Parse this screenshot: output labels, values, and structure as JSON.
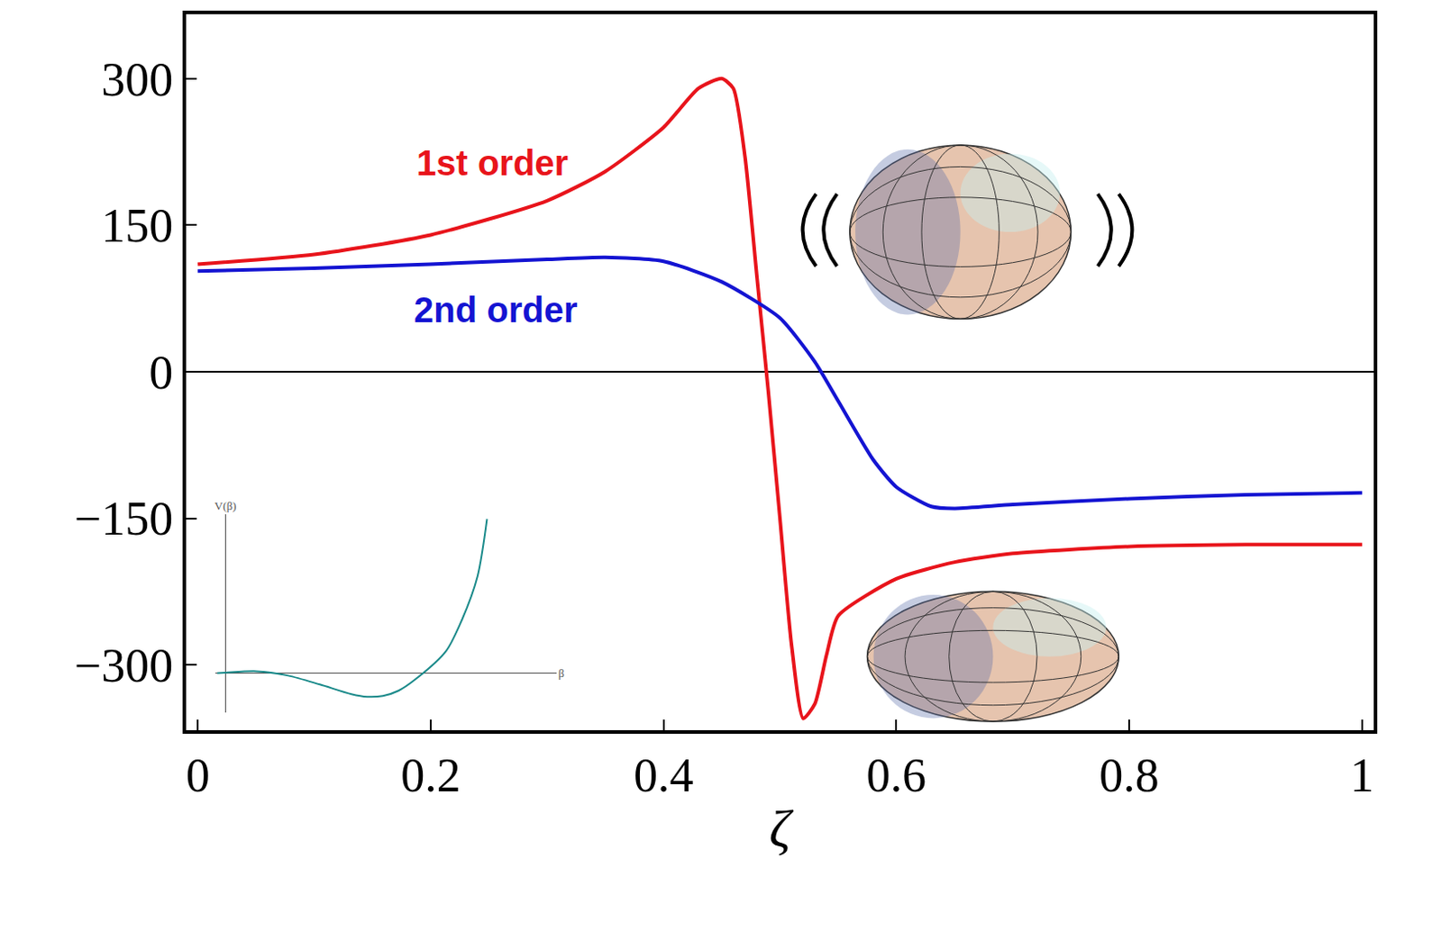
{
  "chart_data": [
    {
      "type": "line",
      "x_label": "ζ",
      "xlim": [
        -0.01,
        1.01
      ],
      "xticks": [
        0,
        0.2,
        0.4,
        0.6,
        0.8,
        1
      ],
      "ylim": [
        -367,
        366
      ],
      "yticks": [
        {
          "value": -300,
          "label": "−300"
        },
        {
          "value": -150,
          "label": "−150"
        },
        0,
        150,
        300
      ],
      "grid": false,
      "series": [
        {
          "name": "1st order",
          "color": "#e8141b",
          "x": [
            0,
            0.1,
            0.2,
            0.3,
            0.35,
            0.4,
            0.43,
            0.45,
            0.46,
            0.47,
            0.48,
            0.49,
            0.5,
            0.51,
            0.52,
            0.53,
            0.54,
            0.55,
            0.6,
            0.65,
            0.7,
            0.8,
            0.9,
            1
          ],
          "values": [
            110,
            120,
            140,
            175,
            205,
            250,
            290,
            300,
            290,
            220,
            100,
            -20,
            -150,
            -280,
            -355,
            -340,
            -290,
            -250,
            -212,
            -195,
            -186,
            -179,
            -177,
            -177
          ]
        },
        {
          "name": "2nd order",
          "color": "#1414d2",
          "x": [
            0,
            0.1,
            0.2,
            0.3,
            0.35,
            0.4,
            0.45,
            0.5,
            0.53,
            0.55,
            0.58,
            0.6,
            0.63,
            0.65,
            0.7,
            0.8,
            0.9,
            1
          ],
          "values": [
            103,
            106,
            110,
            115,
            117,
            113,
            92,
            55,
            10,
            -30,
            -90,
            -118,
            -138,
            -140,
            -136,
            -130,
            -126,
            -124
          ]
        }
      ]
    },
    {
      "type": "line",
      "x_label": "β",
      "y_label": "V(β)",
      "xlim": [
        -0.03,
        1.05
      ],
      "ylim": [
        -0.45,
        1.8
      ],
      "tick_labels": false,
      "series": [
        {
          "color": "#1a8a8a",
          "x": [
            -0.025,
            0,
            0.1,
            0.2,
            0.3,
            0.4,
            0.45,
            0.5,
            0.55,
            0.6,
            0.7,
            0.75,
            0.8,
            0.83
          ],
          "values": [
            0,
            0.005,
            0.02,
            -0.03,
            -0.13,
            -0.24,
            -0.27,
            -0.26,
            -0.2,
            -0.08,
            0.25,
            0.6,
            1.1,
            1.75
          ]
        }
      ]
    }
  ]
}
